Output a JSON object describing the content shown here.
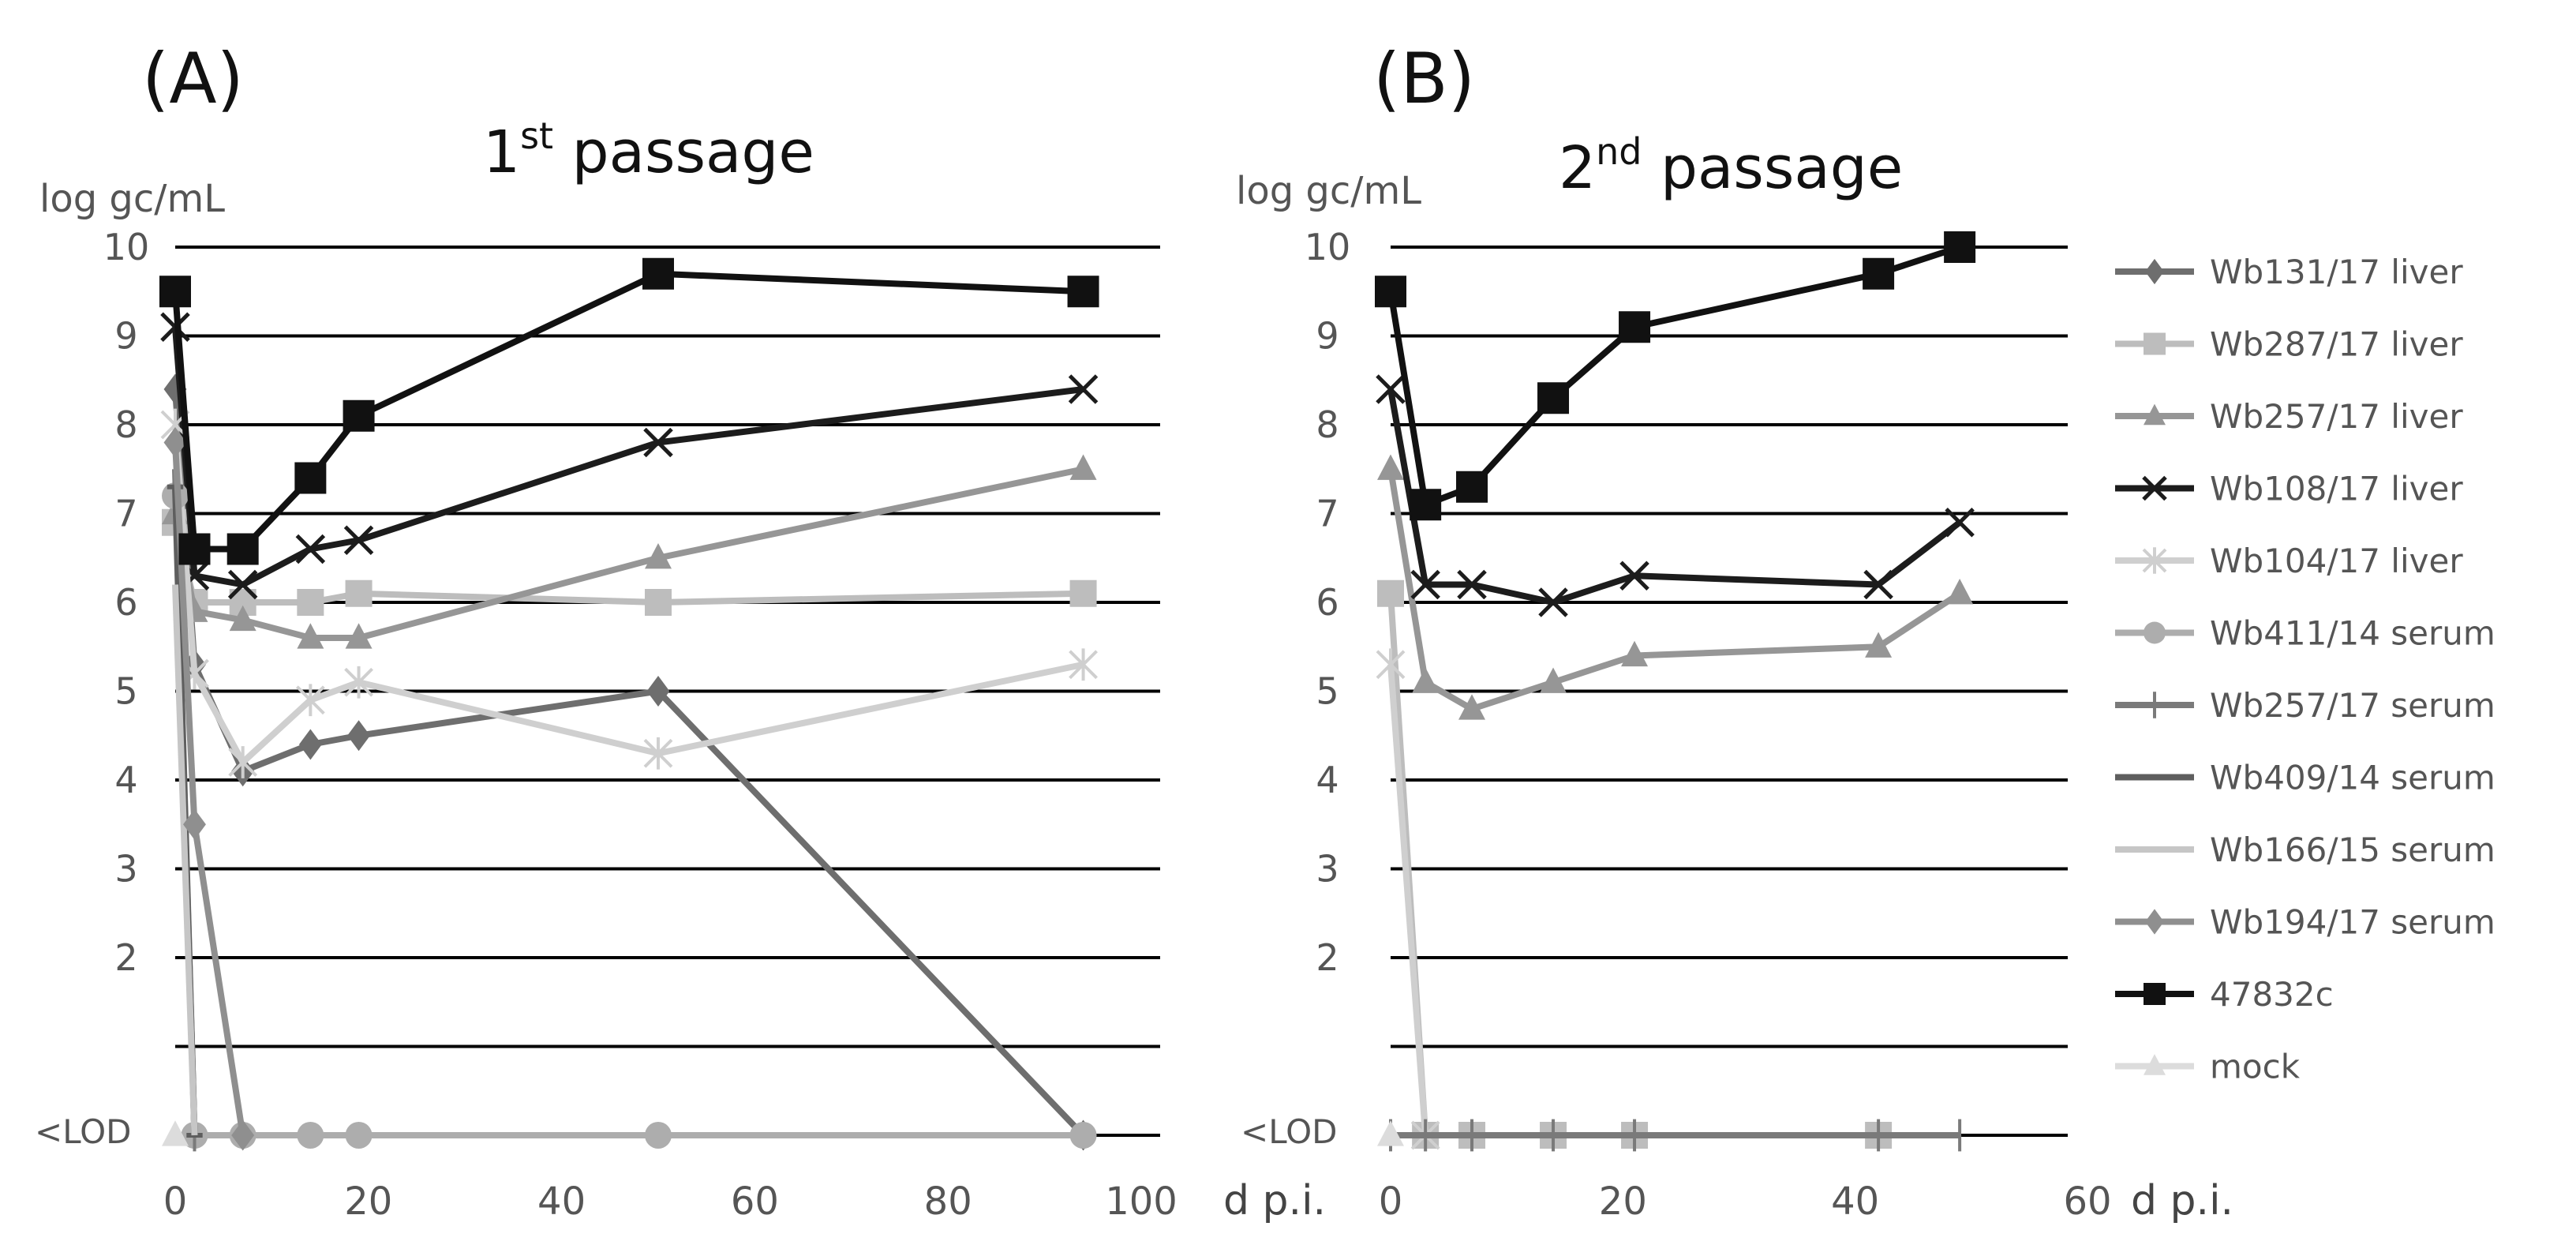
{
  "figure": {
    "panels": [
      {
        "letter": "(A)",
        "title_main": "1",
        "title_sup": "st",
        "title_rest": " passage"
      },
      {
        "letter": "(B)",
        "title_main": "2",
        "title_sup": "nd",
        "title_rest": " passage"
      }
    ],
    "ylabel": "log gc/mL",
    "xlabel": "d p.i.",
    "lod_label": "<LOD"
  },
  "styles": {
    "Wb131/17 liver": {
      "color": "#6e6e6e",
      "marker": "diamond"
    },
    "Wb287/17 liver": {
      "color": "#bdbdbd",
      "marker": "square"
    },
    "Wb257/17 liver": {
      "color": "#969696",
      "marker": "triangle"
    },
    "Wb108/17 liver": {
      "color": "#1c1c1c",
      "marker": "x"
    },
    "Wb104/17 liver": {
      "color": "#cfcfcf",
      "marker": "star"
    },
    "Wb411/14 serum": {
      "color": "#adadad",
      "marker": "circle"
    },
    "Wb257/17 serum": {
      "color": "#7a7a7a",
      "marker": "plus"
    },
    "Wb409/14 serum": {
      "color": "#5e5e5e",
      "marker": "dash"
    },
    "Wb166/15 serum": {
      "color": "#c6c6c6",
      "marker": "none"
    },
    "Wb194/17 serum": {
      "color": "#8f8f8f",
      "marker": "diamond"
    },
    "47832c": {
      "color": "#111111",
      "marker": "square"
    },
    "mock": {
      "color": "#dcdcdc",
      "marker": "triangle"
    }
  },
  "chart_data": [
    {
      "type": "line",
      "title": "1st passage",
      "panel": "(A)",
      "xlabel": "d p.i.",
      "ylabel": "log gc/mL",
      "xlim": [
        0,
        100
      ],
      "xticks": [
        0,
        20,
        40,
        60,
        80,
        100
      ],
      "ylim": [
        0,
        10
      ],
      "yticks": [
        2,
        3,
        4,
        5,
        6,
        7,
        8,
        9,
        10
      ],
      "gridlines": [
        1,
        2,
        3,
        4,
        5,
        6,
        7,
        8,
        9,
        10
      ],
      "lod_value": 0,
      "series": [
        {
          "name": "Wb131/17 liver",
          "x": [
            0,
            2,
            7,
            14,
            19,
            50,
            94
          ],
          "y": [
            8.4,
            5.3,
            4.1,
            4.4,
            4.5,
            5.0,
            0
          ]
        },
        {
          "name": "Wb287/17 liver",
          "x": [
            0,
            2,
            7,
            14,
            19,
            50,
            94
          ],
          "y": [
            6.9,
            6.0,
            6.0,
            6.0,
            6.1,
            6.0,
            6.1
          ]
        },
        {
          "name": "Wb257/17 liver",
          "x": [
            0,
            2,
            7,
            14,
            19,
            50,
            94
          ],
          "y": [
            7.0,
            5.9,
            5.8,
            5.6,
            5.6,
            6.5,
            7.5
          ]
        },
        {
          "name": "Wb108/17 liver",
          "x": [
            0,
            2,
            7,
            14,
            19,
            50,
            94
          ],
          "y": [
            9.1,
            6.3,
            6.2,
            6.6,
            6.7,
            7.8,
            8.4
          ]
        },
        {
          "name": "Wb104/17 liver",
          "x": [
            0,
            2,
            7,
            14,
            19,
            50,
            94
          ],
          "y": [
            8.0,
            5.2,
            4.2,
            4.9,
            5.1,
            4.3,
            5.3
          ]
        },
        {
          "name": "Wb411/14 serum",
          "x": [
            0,
            2,
            7,
            14,
            19,
            50,
            94
          ],
          "y": [
            7.2,
            0,
            0,
            0,
            0,
            0,
            0
          ]
        },
        {
          "name": "Wb257/17 serum",
          "x": [
            0,
            2
          ],
          "y": [
            7.5,
            0
          ]
        },
        {
          "name": "Wb409/14 serum",
          "x": [
            0,
            2
          ],
          "y": [
            7.3,
            0
          ]
        },
        {
          "name": "Wb166/15 serum",
          "x": [
            0,
            2
          ],
          "y": [
            6.2,
            0
          ]
        },
        {
          "name": "Wb194/17 serum",
          "x": [
            0,
            2,
            7
          ],
          "y": [
            7.8,
            3.5,
            0
          ]
        },
        {
          "name": "47832c",
          "x": [
            0,
            2,
            7,
            14,
            19,
            50,
            94
          ],
          "y": [
            9.5,
            6.6,
            6.6,
            7.4,
            8.1,
            9.7,
            9.5
          ]
        },
        {
          "name": "mock",
          "x": [
            0
          ],
          "y": [
            0
          ]
        }
      ]
    },
    {
      "type": "line",
      "title": "2nd passage",
      "panel": "(B)",
      "xlabel": "d p.i.",
      "ylabel": "log gc/mL",
      "xlim": [
        0,
        60
      ],
      "xticks": [
        0,
        20,
        40,
        60
      ],
      "ylim": [
        0,
        10
      ],
      "yticks": [
        2,
        3,
        4,
        5,
        6,
        7,
        8,
        9,
        10
      ],
      "gridlines": [
        1,
        2,
        3,
        4,
        5,
        6,
        7,
        8,
        9,
        10
      ],
      "lod_value": 0,
      "series": [
        {
          "name": "Wb287/17 liver",
          "x": [
            0,
            3,
            7,
            14,
            21,
            42
          ],
          "y": [
            6.1,
            0,
            0,
            0,
            0,
            0
          ]
        },
        {
          "name": "Wb257/17 liver",
          "x": [
            0,
            3,
            7,
            14,
            21,
            42,
            49
          ],
          "y": [
            7.5,
            5.1,
            4.8,
            5.1,
            5.4,
            5.5,
            6.1
          ]
        },
        {
          "name": "Wb108/17 liver",
          "x": [
            0,
            3,
            7,
            14,
            21,
            42,
            49
          ],
          "y": [
            8.4,
            6.2,
            6.2,
            6.0,
            6.3,
            6.2,
            6.9
          ]
        },
        {
          "name": "Wb104/17 liver",
          "x": [
            0,
            3
          ],
          "y": [
            5.3,
            0
          ]
        },
        {
          "name": "Wb257/17 serum",
          "x": [
            0,
            3,
            7,
            14,
            21,
            42,
            49
          ],
          "y": [
            0,
            0,
            0,
            0,
            0,
            0,
            0
          ]
        },
        {
          "name": "47832c",
          "x": [
            0,
            3,
            7,
            14,
            21,
            42,
            49
          ],
          "y": [
            9.5,
            7.1,
            7.3,
            8.3,
            9.1,
            9.7,
            10.0
          ]
        },
        {
          "name": "mock",
          "x": [
            0
          ],
          "y": [
            0
          ]
        }
      ]
    }
  ]
}
